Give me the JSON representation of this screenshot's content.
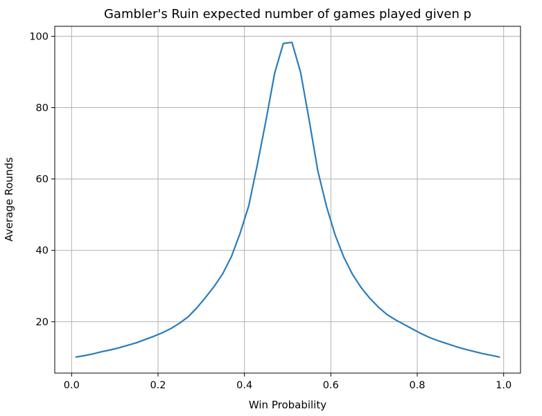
{
  "chart_data": {
    "type": "line",
    "title": "Gambler's Ruin expected number of games played given p",
    "xlabel": "Win Probability",
    "ylabel": "Average Rounds",
    "xlim": [
      -0.039,
      1.039
    ],
    "ylim": [
      5.6,
      102.8
    ],
    "xticks": [
      0.0,
      0.2,
      0.4,
      0.6,
      0.8,
      1.0
    ],
    "xtick_labels": [
      "0.0",
      "0.2",
      "0.4",
      "0.6",
      "0.8",
      "1.0"
    ],
    "yticks": [
      20,
      40,
      60,
      80,
      100
    ],
    "ytick_labels": [
      "20",
      "40",
      "60",
      "80",
      "100"
    ],
    "grid": true,
    "line_color": "#2b7bb9",
    "series": [
      {
        "x": [
          0.01,
          0.03,
          0.05,
          0.07,
          0.09,
          0.11,
          0.13,
          0.15,
          0.17,
          0.19,
          0.21,
          0.23,
          0.25,
          0.27,
          0.29,
          0.31,
          0.33,
          0.35,
          0.37,
          0.39,
          0.41,
          0.43,
          0.45,
          0.47,
          0.49,
          0.51,
          0.53,
          0.55,
          0.57,
          0.59,
          0.61,
          0.63,
          0.65,
          0.67,
          0.69,
          0.71,
          0.73,
          0.75,
          0.77,
          0.79,
          0.81,
          0.83,
          0.85,
          0.87,
          0.89,
          0.91,
          0.93,
          0.95,
          0.97,
          0.99
        ],
        "y": [
          10.1,
          10.5,
          11.0,
          11.6,
          12.1,
          12.7,
          13.4,
          14.1,
          15.0,
          15.9,
          16.9,
          18.1,
          19.6,
          21.4,
          23.9,
          26.8,
          29.9,
          33.5,
          38.3,
          44.8,
          52.5,
          64.1,
          76.5,
          89.7,
          98.0,
          98.3,
          89.9,
          76.4,
          62.2,
          52.3,
          44.3,
          38.1,
          33.3,
          29.6,
          26.6,
          24.1,
          22.0,
          20.5,
          19.2,
          17.9,
          16.6,
          15.5,
          14.6,
          13.8,
          13.0,
          12.3,
          11.7,
          11.1,
          10.6,
          10.1
        ]
      }
    ]
  }
}
